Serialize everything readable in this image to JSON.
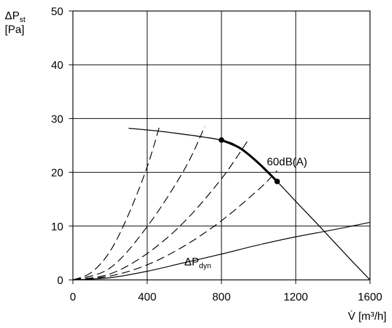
{
  "chart_data": {
    "type": "line",
    "xlabel": "V̇ [m³/h]",
    "ylabel_line1": "ΔP",
    "ylabel_sub": "st",
    "ylabel_line2": "[Pa]",
    "xlim": [
      0,
      1600
    ],
    "ylim": [
      0,
      50
    ],
    "x_ticks": [
      0,
      400,
      800,
      1200,
      1600
    ],
    "y_ticks": [
      0,
      10,
      20,
      30,
      40,
      50
    ],
    "grid": true,
    "fan_curve": {
      "x": [
        300,
        500,
        800,
        900,
        1000,
        1100,
        1200,
        1300,
        1400,
        1500,
        1600
      ],
      "y": [
        28.2,
        27.5,
        26.0,
        24.5,
        21.7,
        18.3,
        14.6,
        11.0,
        7.3,
        3.6,
        0
      ]
    },
    "operating_range": {
      "label": "60dB(A)",
      "x": [
        800,
        900,
        1000,
        1100
      ],
      "y": [
        26.0,
        24.5,
        21.7,
        18.3
      ]
    },
    "operating_points": [
      {
        "x": 800,
        "y": 26.0
      },
      {
        "x": 1100,
        "y": 18.3
      }
    ],
    "system_curves": [
      {
        "x": [
          0,
          100,
          200,
          300,
          400,
          470
        ],
        "y": [
          0,
          1.4,
          5.3,
          12.2,
          21.0,
          29.0
        ]
      },
      {
        "x": [
          0,
          200,
          400,
          600,
          710
        ],
        "y": [
          0,
          2.2,
          9.9,
          20.5,
          28.5
        ]
      },
      {
        "x": [
          0,
          200,
          400,
          600,
          800,
          940
        ],
        "y": [
          0,
          1.1,
          4.9,
          10.8,
          18.8,
          25.8
        ]
      },
      {
        "x": [
          0,
          200,
          400,
          600,
          800,
          1000,
          1100
        ],
        "y": [
          0,
          0.7,
          2.8,
          6.3,
          11.0,
          16.8,
          20.3
        ]
      }
    ],
    "dynamic_pressure": {
      "label_main": "ΔP",
      "label_sub": "dyn",
      "label_x": 600,
      "label_y": 2.7,
      "x": [
        0,
        200,
        400,
        600,
        800,
        1000,
        1200,
        1400,
        1600
      ],
      "y": [
        0,
        0.4,
        1.6,
        3.2,
        4.8,
        6.5,
        8.0,
        9.3,
        10.7
      ]
    }
  }
}
